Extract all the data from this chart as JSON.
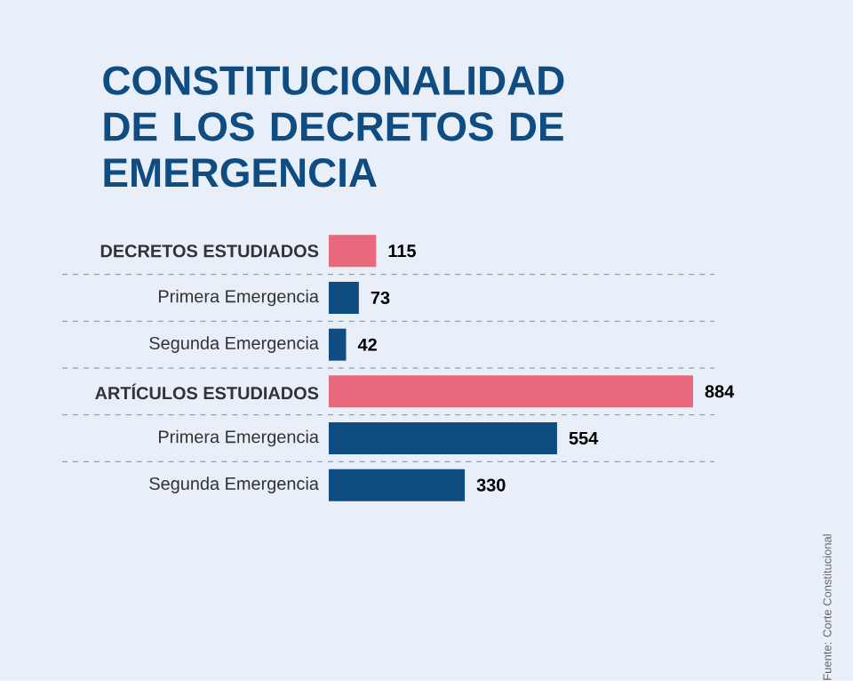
{
  "chart_data": {
    "type": "bar",
    "orientation": "horizontal",
    "title": "CONSTITUCIONALIDAD DE LOS DECRETOS DE EMERGENCIA",
    "categories": [
      "**DECRETOS ESTUDIADOS**",
      "Primera Emergencia",
      "Segunda Emergencia",
      "**ARTÍCULOS ESTUDIADOS**",
      "Primera Emergencia",
      "Segunda Emergencia"
    ],
    "values": [
      115,
      73,
      42,
      884,
      554,
      330
    ],
    "colors": [
      "#e8697c",
      "#0f4c81",
      "#0f4c81",
      "#e8697c",
      "#0f4c81",
      "#0f4c81"
    ],
    "data_labels": true,
    "annotations": [
      "Fuente: Corte Constitucional"
    ]
  }
}
